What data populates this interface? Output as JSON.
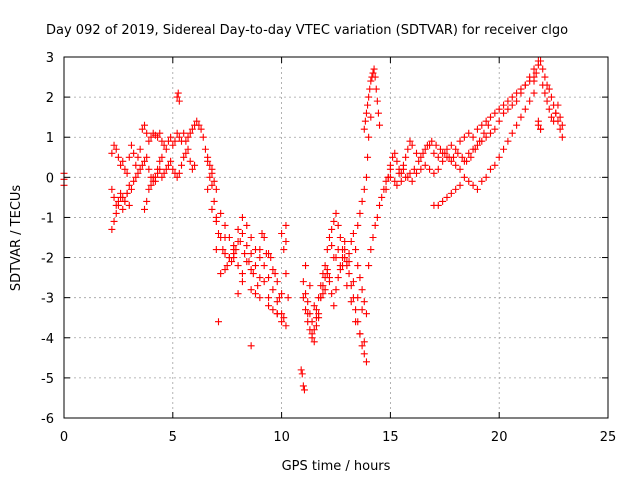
{
  "chart_data": {
    "type": "scatter",
    "title": "Day 092 of 2019, Sidereal Day-to-day VTEC variation (SDTVAR) for receiver clgo",
    "xlabel": "GPS time / hours",
    "ylabel": "SDTVAR / TECUs",
    "xlim": [
      0,
      25
    ],
    "ylim": [
      -6,
      3
    ],
    "xticks": [
      0,
      5,
      10,
      15,
      20,
      25
    ],
    "yticks": [
      -6,
      -5,
      -4,
      -3,
      -2,
      -1,
      0,
      1,
      2,
      3
    ],
    "xtick_labels": [
      "0",
      "5",
      "10",
      "15",
      "20",
      "25"
    ],
    "ytick_labels": [
      "-6",
      "-5",
      "-4",
      "-3",
      "-2",
      "-1",
      "0",
      "1",
      "2",
      "3"
    ],
    "grid": true,
    "marker": "+",
    "color": "#ff0000",
    "series": [
      {
        "name": "SDTVAR",
        "x": [
          0.0,
          0.0,
          0.0,
          2.2,
          2.3,
          2.4,
          2.5,
          2.6,
          2.7,
          2.8,
          2.9,
          3.0,
          3.1,
          3.2,
          3.3,
          3.4,
          3.5,
          3.6,
          3.7,
          3.8,
          3.9,
          4.0,
          4.1,
          4.2,
          4.3,
          4.4,
          4.5,
          4.6,
          4.7,
          4.8,
          4.9,
          5.0,
          5.1,
          5.2,
          5.3,
          5.4,
          5.5,
          5.6,
          5.7,
          5.8,
          5.9,
          6.0,
          6.1,
          6.2,
          6.3,
          6.4,
          6.5,
          6.6,
          6.7,
          6.8,
          6.9,
          2.2,
          2.3,
          2.4,
          2.5,
          2.6,
          2.7,
          2.8,
          2.9,
          3.0,
          3.1,
          3.2,
          3.3,
          3.4,
          3.5,
          3.6,
          3.7,
          3.8,
          3.9,
          4.0,
          4.1,
          4.2,
          4.3,
          4.4,
          4.5,
          4.6,
          4.7,
          4.8,
          4.9,
          5.0,
          5.1,
          5.2,
          5.3,
          5.4,
          5.5,
          5.6,
          5.7,
          5.8,
          5.9,
          6.0,
          2.2,
          2.3,
          2.4,
          2.5,
          2.6,
          2.7,
          2.8,
          2.9,
          3.0,
          3.7,
          3.8,
          3.9,
          4.0,
          4.1,
          4.2,
          4.3,
          4.4,
          4.5,
          5.2,
          5.25,
          5.3,
          6.6,
          6.8,
          7.0,
          7.2,
          7.4,
          7.6,
          7.8,
          8.0,
          8.2,
          8.4,
          8.6,
          8.8,
          9.0,
          9.2,
          9.4,
          9.6,
          9.8,
          10.0,
          10.2,
          6.6,
          6.8,
          7.0,
          7.2,
          7.4,
          7.6,
          7.8,
          8.0,
          8.2,
          8.4,
          8.6,
          8.8,
          9.0,
          9.2,
          9.4,
          9.6,
          9.8,
          10.0,
          10.2,
          6.7,
          6.9,
          7.1,
          7.3,
          7.5,
          7.7,
          7.9,
          8.1,
          8.3,
          8.5,
          8.7,
          8.9,
          9.1,
          9.3,
          9.5,
          9.7,
          9.9,
          10.1,
          6.8,
          7.0,
          7.2,
          7.4,
          7.6,
          7.8,
          8.0,
          8.2,
          8.4,
          8.6,
          8.8,
          9.0,
          9.2,
          9.4,
          9.6,
          9.8,
          10.0,
          7.0,
          7.4,
          7.8,
          8.2,
          8.6,
          9.0,
          9.4,
          9.8,
          10.2,
          10.0,
          10.1,
          10.2,
          10.3,
          7.1,
          8.0,
          8.6,
          10.9,
          10.95,
          11.0,
          11.05,
          11.0,
          11.1,
          11.2,
          11.3,
          11.4,
          11.5,
          11.6,
          11.7,
          11.8,
          11.9,
          12.0,
          12.1,
          12.2,
          12.3,
          12.4,
          12.5,
          12.6,
          12.7,
          12.8,
          12.9,
          13.0,
          13.1,
          13.2,
          13.3,
          13.4,
          13.5,
          13.6,
          13.7,
          13.8,
          13.9,
          11.0,
          11.1,
          11.2,
          11.3,
          11.4,
          11.5,
          11.6,
          11.7,
          11.8,
          11.9,
          12.0,
          12.1,
          12.2,
          12.3,
          12.4,
          12.5,
          12.6,
          12.7,
          12.8,
          12.9,
          13.0,
          13.1,
          13.2,
          13.3,
          13.4,
          13.5,
          13.6,
          13.7,
          13.8,
          13.9,
          11.1,
          11.3,
          11.5,
          11.7,
          11.9,
          12.1,
          12.3,
          12.5,
          12.7,
          12.9,
          13.1,
          13.3,
          13.5,
          13.7,
          11.2,
          11.4,
          11.6,
          11.8,
          12.0,
          12.2,
          12.4,
          12.6,
          12.8,
          13.0,
          13.2,
          13.4,
          13.6,
          13.8,
          13.5,
          13.6,
          13.7,
          13.8,
          13.9,
          13.95,
          14.0,
          14.1,
          13.8,
          13.85,
          13.9,
          13.95,
          14.0,
          14.05,
          14.1,
          14.15,
          14.2,
          14.25,
          14.3,
          14.35,
          14.4,
          14.45,
          14.5,
          14.0,
          14.1,
          14.2,
          14.3,
          14.4,
          14.5,
          14.6,
          14.7,
          14.8,
          14.9,
          15.0,
          14.8,
          14.9,
          15.0,
          15.1,
          15.2,
          15.3,
          15.4,
          15.5,
          15.6,
          15.7,
          15.8,
          15.9,
          16.0,
          16.2,
          16.4,
          16.6,
          16.8,
          17.0,
          17.2,
          17.4,
          17.6,
          17.8,
          18.0,
          18.2,
          18.4,
          18.6,
          18.8,
          19.0,
          19.2,
          19.4,
          19.6,
          19.8,
          20.0,
          20.2,
          20.4,
          20.6,
          20.8,
          21.0,
          21.2,
          21.4,
          21.6,
          15.0,
          15.2,
          15.4,
          15.6,
          15.8,
          16.0,
          16.2,
          16.4,
          16.6,
          16.8,
          17.0,
          17.2,
          17.4,
          17.6,
          17.8,
          18.0,
          18.2,
          18.4,
          18.6,
          18.8,
          19.0,
          19.2,
          19.4,
          19.6,
          19.8,
          20.0,
          20.2,
          20.4,
          20.6,
          20.8,
          21.0,
          21.2,
          21.4,
          21.6,
          21.8,
          15.3,
          15.5,
          15.7,
          15.9,
          16.1,
          16.3,
          16.5,
          16.7,
          16.9,
          17.1,
          17.3,
          17.5,
          17.7,
          17.9,
          18.1,
          18.3,
          18.5,
          18.7,
          18.9,
          19.1,
          19.3,
          19.5,
          17.0,
          17.2,
          17.4,
          17.6,
          17.8,
          18.0,
          18.2,
          18.4,
          18.6,
          18.8,
          19.0,
          19.2,
          19.4,
          19.6,
          19.8,
          20.0,
          20.2,
          20.4,
          20.6,
          20.8,
          21.0,
          21.2,
          21.4,
          21.6,
          21.6,
          21.7,
          21.8,
          21.9,
          22.0,
          22.1,
          22.2,
          22.3,
          22.4,
          22.5,
          22.6,
          22.7,
          22.8,
          22.9,
          21.8,
          21.9,
          22.0,
          22.1,
          22.2,
          22.3,
          22.4,
          22.5,
          22.6,
          22.7,
          22.8,
          22.9,
          21.8,
          21.9
        ],
        "y": [
          0.1,
          -0.05,
          -0.2,
          0.6,
          0.8,
          0.7,
          0.5,
          0.3,
          0.4,
          0.2,
          0.1,
          0.5,
          0.8,
          0.6,
          0.3,
          0.5,
          0.7,
          1.2,
          1.3,
          1.1,
          0.9,
          1.0,
          1.1,
          1.05,
          1.0,
          1.1,
          0.9,
          0.8,
          0.7,
          0.9,
          1.0,
          0.8,
          0.9,
          1.1,
          1.0,
          0.9,
          1.1,
          0.9,
          1.0,
          1.1,
          1.2,
          1.3,
          1.4,
          1.3,
          1.2,
          1.0,
          0.7,
          0.5,
          0.3,
          0.1,
          -0.1,
          -0.3,
          -0.5,
          -0.7,
          -0.6,
          -0.4,
          -0.5,
          -0.6,
          -0.4,
          -0.2,
          -0.3,
          -0.1,
          0.0,
          0.1,
          0.2,
          0.3,
          0.4,
          0.5,
          0.2,
          0.0,
          -0.1,
          0.0,
          0.1,
          0.2,
          0.0,
          0.1,
          0.2,
          0.3,
          0.4,
          0.2,
          0.1,
          0.0,
          0.1,
          0.3,
          0.5,
          0.6,
          0.7,
          0.4,
          0.2,
          0.3,
          -1.3,
          -1.1,
          -0.9,
          -0.7,
          -0.5,
          -0.8,
          -0.6,
          -0.4,
          -0.7,
          -0.8,
          -0.6,
          -0.3,
          -0.2,
          0.0,
          -0.1,
          0.2,
          0.4,
          0.5,
          2.0,
          2.1,
          1.9,
          0.4,
          0.2,
          -0.3,
          -0.9,
          -1.2,
          -1.5,
          -1.8,
          -1.6,
          -1.4,
          -1.7,
          -1.9,
          -2.2,
          -1.8,
          -1.5,
          -1.9,
          -2.3,
          -2.6,
          -2.9,
          -1.6,
          -0.3,
          -0.8,
          -1.1,
          -1.5,
          -1.9,
          -2.0,
          -1.7,
          -1.3,
          -1.0,
          -1.2,
          -1.5,
          -1.8,
          -2.0,
          -2.2,
          -2.5,
          -2.8,
          -3.1,
          -3.4,
          -1.2,
          0.0,
          -0.6,
          -1.4,
          -1.8,
          -2.2,
          -2.1,
          -1.8,
          -1.6,
          -1.9,
          -2.1,
          -2.4,
          -2.7,
          -1.4,
          -1.9,
          -2.0,
          -2.4,
          -3.0,
          -3.5,
          -0.2,
          -1.8,
          -2.4,
          -2.3,
          -2.0,
          -1.9,
          -2.2,
          -2.6,
          -2.1,
          -2.3,
          -2.9,
          -2.5,
          -2.6,
          -3.0,
          -3.3,
          -3.4,
          -3.6,
          -1.0,
          -1.5,
          -2.0,
          -2.4,
          -2.8,
          -3.0,
          -3.2,
          -3.4,
          -3.7,
          -1.4,
          -1.8,
          -2.4,
          -3.0,
          -3.6,
          -2.9,
          -4.2,
          -4.8,
          -4.9,
          -5.2,
          -5.3,
          -2.6,
          -2.9,
          -3.1,
          -3.4,
          -3.6,
          -3.8,
          -3.3,
          -3.0,
          -2.7,
          -2.4,
          -2.2,
          -1.8,
          -1.5,
          -1.3,
          -1.1,
          -0.9,
          -1.2,
          -1.5,
          -1.8,
          -2.0,
          -2.2,
          -1.9,
          -1.6,
          -1.4,
          -1.8,
          -2.2,
          -2.5,
          -2.8,
          -3.1,
          -3.4,
          -3.0,
          -3.3,
          -3.6,
          -3.8,
          -4.0,
          -4.1,
          -3.7,
          -3.4,
          -3.0,
          -2.7,
          -2.5,
          -2.3,
          -2.6,
          -2.9,
          -3.2,
          -2.8,
          -2.5,
          -2.2,
          -2.0,
          -1.8,
          -2.1,
          -2.4,
          -2.7,
          -3.0,
          -3.3,
          -3.6,
          -3.9,
          -4.2,
          -4.4,
          -4.6,
          -2.2,
          -2.7,
          -3.2,
          -3.5,
          -2.9,
          -2.4,
          -1.7,
          -2.0,
          -2.3,
          -1.6,
          -2.1,
          -2.6,
          -3.0,
          -3.3,
          -3.4,
          -3.9,
          -3.5,
          -3.0,
          -2.8,
          -2.5,
          -2.0,
          -1.8,
          -2.2,
          -2.7,
          -3.1,
          -3.6,
          -3.9,
          -4.1,
          -1.2,
          -0.9,
          -0.6,
          -0.3,
          0.0,
          0.5,
          1.0,
          1.5,
          1.2,
          1.4,
          1.6,
          1.8,
          2.0,
          2.2,
          2.4,
          2.5,
          2.6,
          2.7,
          2.5,
          2.2,
          1.9,
          1.6,
          1.3,
          -2.2,
          -1.8,
          -1.5,
          -1.2,
          -1.0,
          -0.7,
          -0.5,
          -0.3,
          -0.1,
          0.0,
          0.2,
          -0.3,
          0.0,
          0.3,
          0.5,
          0.6,
          0.4,
          0.2,
          0.1,
          0.3,
          0.5,
          0.7,
          0.9,
          0.8,
          0.6,
          0.5,
          0.7,
          0.8,
          0.6,
          0.5,
          0.6,
          0.7,
          0.8,
          0.7,
          0.9,
          1.0,
          1.1,
          1.0,
          1.2,
          1.3,
          1.4,
          1.5,
          1.6,
          1.7,
          1.8,
          1.9,
          2.0,
          2.1,
          2.2,
          2.3,
          2.4,
          2.5,
          0.0,
          -0.1,
          0.1,
          0.2,
          0.0,
          -0.1,
          0.1,
          0.2,
          0.3,
          0.2,
          0.1,
          0.2,
          0.4,
          0.5,
          0.4,
          0.3,
          0.2,
          0.4,
          0.6,
          0.7,
          0.8,
          0.9,
          1.0,
          1.1,
          1.2,
          1.4,
          1.6,
          1.7,
          1.8,
          1.9,
          2.1,
          2.3,
          2.5,
          2.7,
          2.9,
          -0.2,
          -0.1,
          0.0,
          0.1,
          0.2,
          0.4,
          0.6,
          0.8,
          0.9,
          0.8,
          0.7,
          0.6,
          0.5,
          0.5,
          0.6,
          0.5,
          0.4,
          0.5,
          0.7,
          0.9,
          1.1,
          1.3,
          -0.7,
          -0.7,
          -0.6,
          -0.5,
          -0.4,
          -0.3,
          -0.2,
          0.0,
          -0.1,
          -0.2,
          -0.3,
          -0.1,
          0.0,
          0.2,
          0.3,
          0.5,
          0.7,
          0.9,
          1.1,
          1.3,
          1.5,
          1.7,
          1.9,
          2.1,
          2.4,
          2.6,
          2.8,
          2.9,
          2.7,
          2.5,
          2.3,
          2.2,
          2.0,
          1.8,
          1.6,
          1.4,
          1.2,
          1.0,
          1.3,
          1.2,
          2.3,
          2.1,
          1.9,
          1.7,
          1.5,
          1.4,
          1.6,
          1.8,
          1.5,
          1.3,
          1.4,
          1.2
        ]
      }
    ]
  }
}
